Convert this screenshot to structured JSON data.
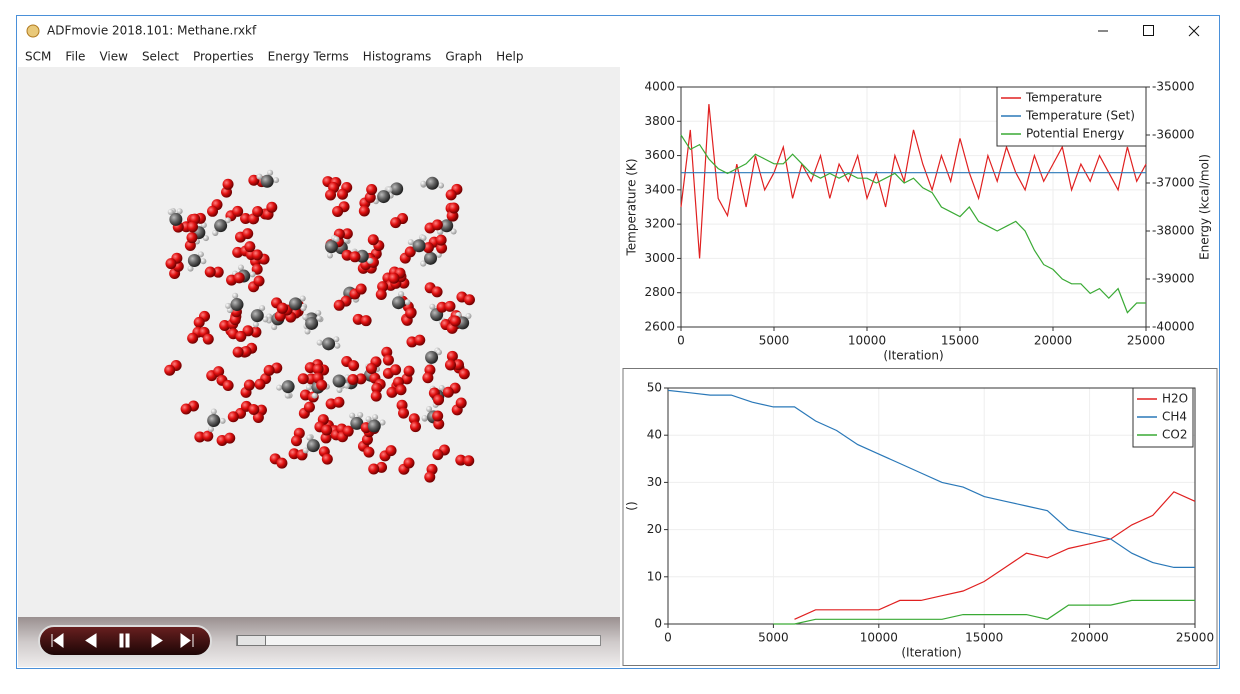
{
  "window": {
    "title": "ADFmovie 2018.101: Methane.rxkf"
  },
  "menu": [
    "SCM",
    "File",
    "View",
    "Select",
    "Properties",
    "Energy Terms",
    "Histograms",
    "Graph",
    "Help"
  ],
  "chart_data": [
    {
      "type": "line",
      "xlabel": "(Iteration)",
      "ylabel": "Temperature (K)",
      "y2label": "Energy (kcal/mol)",
      "xlim": [
        0,
        25000
      ],
      "xticks": [
        0,
        5000,
        10000,
        15000,
        20000,
        25000
      ],
      "ylim": [
        2600,
        4000
      ],
      "yticks": [
        2600,
        2800,
        3000,
        3200,
        3400,
        3600,
        3800,
        4000
      ],
      "y2lim": [
        -40000,
        -35000
      ],
      "y2ticks": [
        -40000,
        -39000,
        -38000,
        -37000,
        -36000,
        -35000
      ],
      "grid": true,
      "legend": "top-right",
      "x": [
        0,
        500,
        1000,
        1500,
        2000,
        2500,
        3000,
        3500,
        4000,
        4500,
        5000,
        5500,
        6000,
        6500,
        7000,
        7500,
        8000,
        8500,
        9000,
        9500,
        10000,
        10500,
        11000,
        11500,
        12000,
        12500,
        13000,
        13500,
        14000,
        14500,
        15000,
        15500,
        16000,
        16500,
        17000,
        17500,
        18000,
        18500,
        19000,
        19500,
        20000,
        20500,
        21000,
        21500,
        22000,
        22500,
        23000,
        23500,
        24000,
        24500,
        25000
      ],
      "series": [
        {
          "name": "Temperature",
          "color": "#e02020",
          "values": [
            3300,
            3750,
            3000,
            3900,
            3350,
            3250,
            3550,
            3300,
            3600,
            3400,
            3500,
            3650,
            3350,
            3550,
            3450,
            3600,
            3350,
            3550,
            3450,
            3600,
            3350,
            3500,
            3300,
            3600,
            3450,
            3750,
            3550,
            3400,
            3600,
            3450,
            3700,
            3500,
            3350,
            3600,
            3450,
            3650,
            3500,
            3400,
            3600,
            3450,
            3550,
            3650,
            3400,
            3550,
            3450,
            3600,
            3500,
            3400,
            3650,
            3450,
            3550
          ]
        },
        {
          "name": "Temperature (Set)",
          "color": "#2a78b8",
          "values": [
            3500,
            3500,
            3500,
            3500,
            3500,
            3500,
            3500,
            3500,
            3500,
            3500,
            3500,
            3500,
            3500,
            3500,
            3500,
            3500,
            3500,
            3500,
            3500,
            3500,
            3500,
            3500,
            3500,
            3500,
            3500,
            3500,
            3500,
            3500,
            3500,
            3500,
            3500,
            3500,
            3500,
            3500,
            3500,
            3500,
            3500,
            3500,
            3500,
            3500,
            3500,
            3500,
            3500,
            3500,
            3500,
            3500,
            3500,
            3500,
            3500,
            3500,
            3500
          ]
        },
        {
          "name": "Potential Energy",
          "color": "#3aaa35",
          "axis": "y2",
          "values": [
            -36000,
            -36300,
            -36200,
            -36500,
            -36700,
            -36800,
            -36700,
            -36600,
            -36400,
            -36500,
            -36600,
            -36600,
            -36400,
            -36600,
            -36800,
            -36900,
            -36800,
            -36900,
            -36800,
            -36900,
            -36900,
            -37000,
            -36900,
            -36800,
            -37000,
            -36900,
            -37100,
            -37200,
            -37500,
            -37600,
            -37700,
            -37500,
            -37800,
            -37900,
            -38000,
            -37900,
            -37800,
            -38000,
            -38400,
            -38700,
            -38800,
            -39000,
            -39100,
            -39100,
            -39300,
            -39200,
            -39400,
            -39200,
            -39700,
            -39500,
            -39500
          ]
        }
      ]
    },
    {
      "type": "line",
      "xlabel": "(Iteration)",
      "ylabel": "()",
      "xlim": [
        0,
        25000
      ],
      "xticks": [
        0,
        5000,
        10000,
        15000,
        20000,
        25000
      ],
      "ylim": [
        0,
        50
      ],
      "yticks": [
        0,
        10,
        20,
        30,
        40,
        50
      ],
      "grid": true,
      "legend": "top-right",
      "x": [
        0,
        1000,
        2000,
        3000,
        4000,
        5000,
        6000,
        7000,
        8000,
        9000,
        10000,
        11000,
        12000,
        13000,
        14000,
        15000,
        16000,
        17000,
        18000,
        19000,
        20000,
        21000,
        22000,
        23000,
        24000,
        25000
      ],
      "series": [
        {
          "name": "H2O",
          "color": "#e02020",
          "values": [
            null,
            null,
            null,
            null,
            null,
            null,
            1,
            3,
            3,
            3,
            3,
            5,
            5,
            6,
            7,
            9,
            12,
            15,
            14,
            16,
            17,
            18,
            21,
            23,
            28,
            26
          ]
        },
        {
          "name": "CH4",
          "color": "#2a78b8",
          "values": [
            49.5,
            49,
            48.5,
            48.5,
            47,
            46,
            46,
            43,
            41,
            38,
            36,
            34,
            32,
            30,
            29,
            27,
            26,
            25,
            24,
            20,
            19,
            18,
            15,
            13,
            12,
            12
          ]
        },
        {
          "name": "CO2",
          "color": "#3aaa35",
          "values": [
            null,
            null,
            null,
            null,
            null,
            0,
            0,
            1,
            1,
            1,
            1,
            1,
            1,
            1,
            2,
            2,
            2,
            2,
            1,
            4,
            4,
            4,
            5,
            5,
            5,
            5
          ]
        }
      ]
    }
  ]
}
